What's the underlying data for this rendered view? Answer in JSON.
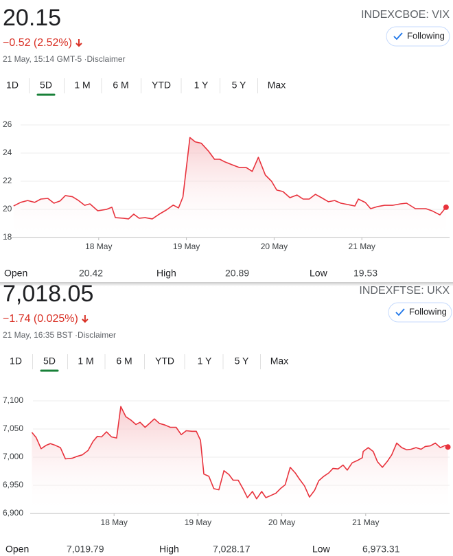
{
  "panels": [
    {
      "price": "20.15",
      "ticker": "INDEXCBOE: VIX",
      "button": "Following",
      "change": "−0.52 (2.52%)",
      "timestamp": "21 May, 15:14 GMT-5 ·Disclaimer",
      "ranges": [
        "1D",
        "5D",
        "1 M",
        "6 M",
        "YTD",
        "1 Y",
        "5 Y",
        "Max"
      ],
      "selected_range": 1,
      "stats": [
        {
          "label": "Open",
          "value": "20.42"
        },
        {
          "label": "High",
          "value": "20.89"
        },
        {
          "label": "Low",
          "value": "19.53"
        }
      ]
    },
    {
      "price": "7,018.05",
      "ticker": "INDEXFTSE: UKX",
      "button": "Following",
      "change": "−1.74 (0.025%)",
      "timestamp": "21 May, 16:35 BST ·Disclaimer",
      "ranges": [
        "1D",
        "5D",
        "1 M",
        "6 M",
        "YTD",
        "1 Y",
        "5 Y",
        "Max"
      ],
      "selected_range": 1,
      "stats": [
        {
          "label": "Open",
          "value": "7,019.79"
        },
        {
          "label": "High",
          "value": "7,028.17"
        },
        {
          "label": "Low",
          "value": "6,973.31"
        }
      ]
    }
  ],
  "chart_data": [
    {
      "type": "line",
      "color": "#e8323c",
      "grid": true,
      "x": [
        0.03,
        0.11,
        0.19,
        0.27,
        0.34,
        0.42,
        0.49,
        0.56,
        0.62,
        0.7,
        0.77,
        0.84,
        0.9,
        0.99,
        1.09,
        1.15,
        1.19,
        1.28,
        1.34,
        1.4,
        1.46,
        1.53,
        1.61,
        1.69,
        1.77,
        1.85,
        1.91,
        1.96,
        2.04,
        2.1,
        2.17,
        2.25,
        2.32,
        2.38,
        2.44,
        2.52,
        2.6,
        2.68,
        2.75,
        2.82,
        2.9,
        2.97,
        3.03,
        3.1,
        3.18,
        3.26,
        3.33,
        3.4,
        3.47,
        3.54,
        3.62,
        3.69,
        3.76,
        3.84,
        3.92,
        3.96,
        4.04,
        4.1,
        4.18,
        4.26,
        4.35,
        4.44,
        4.51,
        4.61,
        4.73,
        4.8,
        4.89,
        4.96
      ],
      "values": [
        20.24,
        20.5,
        20.63,
        20.5,
        20.73,
        20.78,
        20.44,
        20.6,
        20.98,
        20.9,
        20.63,
        20.29,
        20.39,
        19.9,
        20.0,
        20.15,
        19.41,
        19.37,
        19.32,
        19.66,
        19.37,
        19.41,
        19.32,
        19.66,
        19.95,
        20.3,
        20.1,
        20.88,
        25.1,
        24.8,
        24.7,
        24.15,
        23.56,
        23.56,
        23.37,
        23.17,
        22.98,
        22.98,
        22.7,
        23.7,
        22.44,
        22.0,
        21.37,
        21.27,
        20.83,
        21.02,
        20.73,
        20.73,
        21.07,
        20.83,
        20.54,
        20.63,
        20.44,
        20.34,
        20.24,
        20.73,
        20.49,
        20.05,
        20.2,
        20.29,
        20.29,
        20.39,
        20.44,
        20.05,
        20.05,
        19.9,
        19.61,
        20.15
      ],
      "xlim": [
        0,
        5
      ],
      "xticks": [
        {
          "value": 1,
          "label": "18 May"
        },
        {
          "value": 2,
          "label": "19 May"
        },
        {
          "value": 3,
          "label": "20 May"
        },
        {
          "value": 4,
          "label": "21 May"
        }
      ],
      "ylim": [
        18,
        26
      ],
      "yticks": [
        18,
        20,
        22,
        24,
        26
      ]
    },
    {
      "type": "line",
      "color": "#e8323c",
      "grid": true,
      "x": [
        0.02,
        0.07,
        0.13,
        0.19,
        0.24,
        0.3,
        0.36,
        0.42,
        0.5,
        0.55,
        0.62,
        0.69,
        0.75,
        0.8,
        0.85,
        0.91,
        0.97,
        1.03,
        1.08,
        1.14,
        1.2,
        1.26,
        1.31,
        1.37,
        1.43,
        1.48,
        1.54,
        1.61,
        1.67,
        1.74,
        1.8,
        1.86,
        1.93,
        1.98,
        2.03,
        2.07,
        2.13,
        2.19,
        2.25,
        2.31,
        2.37,
        2.42,
        2.48,
        2.54,
        2.59,
        2.65,
        2.7,
        2.76,
        2.81,
        2.87,
        2.93,
        2.99,
        3.04,
        3.1,
        3.16,
        3.21,
        3.27,
        3.33,
        3.39,
        3.44,
        3.5,
        3.56,
        3.61,
        3.67,
        3.73,
        3.78,
        3.84,
        3.9,
        3.96,
        3.97,
        4.03,
        4.09,
        4.14,
        4.2,
        4.26,
        4.31,
        4.37,
        4.43,
        4.49,
        4.54,
        4.6,
        4.66,
        4.71,
        4.77,
        4.83,
        4.89,
        4.95,
        4.98
      ],
      "values": [
        7044,
        7035,
        7015,
        7021,
        7024,
        7021,
        7017,
        6997,
        6998,
        7001,
        7004,
        7012,
        7028,
        7037,
        7036,
        7045,
        7036,
        7034,
        7090,
        7072,
        7066,
        7058,
        7062,
        7053,
        7061,
        7068,
        7060,
        7057,
        7053,
        7053,
        7040,
        7047,
        7046,
        7046,
        7030,
        6970,
        6966,
        6944,
        6942,
        6976,
        6969,
        6959,
        6959,
        6943,
        6928,
        6939,
        6926,
        6939,
        6928,
        6932,
        6936,
        6945,
        6951,
        6982,
        6972,
        6961,
        6949,
        6929,
        6941,
        6958,
        6966,
        6972,
        6980,
        6979,
        6986,
        6977,
        6990,
        6994,
        6999,
        7010,
        7017,
        7010,
        6992,
        6982,
        6993,
        7004,
        7025,
        7017,
        7013,
        7014,
        7017,
        7014,
        7019,
        7020,
        7025,
        7017,
        7021,
        7018.05
      ],
      "xlim": [
        0,
        5
      ],
      "xticks": [
        {
          "value": 1,
          "label": "18 May"
        },
        {
          "value": 2,
          "label": "19 May"
        },
        {
          "value": 3,
          "label": "20 May"
        },
        {
          "value": 4,
          "label": "21 May"
        }
      ],
      "ylim": [
        6900,
        7100
      ],
      "yticks": [
        {
          "value": 6900,
          "label": "6,900"
        },
        {
          "value": 6950,
          "label": "6,950"
        },
        {
          "value": 7000,
          "label": "7,000"
        },
        {
          "value": 7050,
          "label": "7,050"
        },
        {
          "value": 7100,
          "label": "7,100"
        }
      ]
    }
  ]
}
